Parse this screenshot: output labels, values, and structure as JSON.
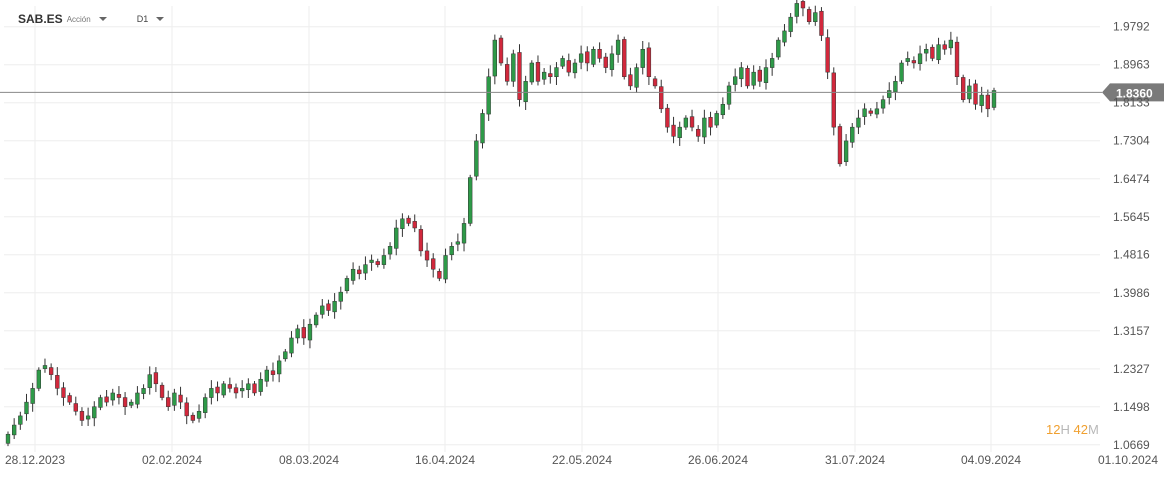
{
  "header": {
    "symbol": "SAB.ES",
    "asset_type": "Acción",
    "timeframe": "D1"
  },
  "countdown": {
    "hours": "12",
    "hours_unit": "H",
    "minutes": "42",
    "minutes_unit": "M"
  },
  "colors": {
    "up": "#2e9a48",
    "down": "#d2283c",
    "grid": "#eeeeee",
    "axis_text": "#555555",
    "price_line": "#888888",
    "price_tag": "#7a7a7a"
  },
  "chart_data": {
    "type": "candlestick",
    "title": "",
    "ylim": [
      1.0669,
      2.075
    ],
    "y_ticks": [
      "1.0669",
      "1.1498",
      "1.2327",
      "1.3157",
      "1.3986",
      "1.4816",
      "1.5645",
      "1.6474",
      "1.7304",
      "1.8133",
      "1.8963",
      "1.9792"
    ],
    "x_ticks": [
      "28.12.2023",
      "02.02.2024",
      "08.03.2024",
      "16.04.2024",
      "22.05.2024",
      "26.06.2024",
      "31.07.2024",
      "04.09.2024",
      "01.10.2024"
    ],
    "current_price": 1.836,
    "current_price_label": "1.8360",
    "grid": true,
    "closes": [
      1.09,
      1.11,
      1.13,
      1.16,
      1.19,
      1.23,
      1.24,
      1.22,
      1.19,
      1.17,
      1.16,
      1.14,
      1.12,
      1.13,
      1.15,
      1.17,
      1.16,
      1.18,
      1.17,
      1.15,
      1.16,
      1.18,
      1.19,
      1.22,
      1.2,
      1.17,
      1.15,
      1.18,
      1.16,
      1.13,
      1.12,
      1.14,
      1.17,
      1.19,
      1.18,
      1.2,
      1.19,
      1.18,
      1.19,
      1.2,
      1.18,
      1.21,
      1.23,
      1.22,
      1.25,
      1.27,
      1.3,
      1.32,
      1.3,
      1.33,
      1.35,
      1.37,
      1.36,
      1.38,
      1.4,
      1.43,
      1.45,
      1.44,
      1.46,
      1.47,
      1.46,
      1.48,
      1.5,
      1.54,
      1.56,
      1.55,
      1.54,
      1.49,
      1.47,
      1.45,
      1.43,
      1.48,
      1.5,
      1.51,
      1.55,
      1.65,
      1.73,
      1.79,
      1.87,
      1.95,
      1.9,
      1.86,
      1.92,
      1.82,
      1.86,
      1.9,
      1.86,
      1.88,
      1.87,
      1.89,
      1.91,
      1.88,
      1.9,
      1.92,
      1.9,
      1.93,
      1.91,
      1.89,
      1.92,
      1.95,
      1.87,
      1.85,
      1.89,
      1.93,
      1.87,
      1.85,
      1.8,
      1.76,
      1.74,
      1.76,
      1.78,
      1.76,
      1.74,
      1.78,
      1.76,
      1.79,
      1.81,
      1.85,
      1.87,
      1.89,
      1.85,
      1.88,
      1.86,
      1.89,
      1.91,
      1.95,
      1.97,
      2.0,
      2.03,
      2.02,
      1.99,
      2.01,
      1.96,
      1.88,
      1.76,
      1.68,
      1.73,
      1.76,
      1.78,
      1.8,
      1.79,
      1.8,
      1.82,
      1.84,
      1.86,
      1.9,
      1.91,
      1.9,
      1.92,
      1.93,
      1.91,
      1.94,
      1.93,
      1.95,
      1.87,
      1.82,
      1.85,
      1.81,
      1.83,
      1.8,
      1.84
    ]
  }
}
